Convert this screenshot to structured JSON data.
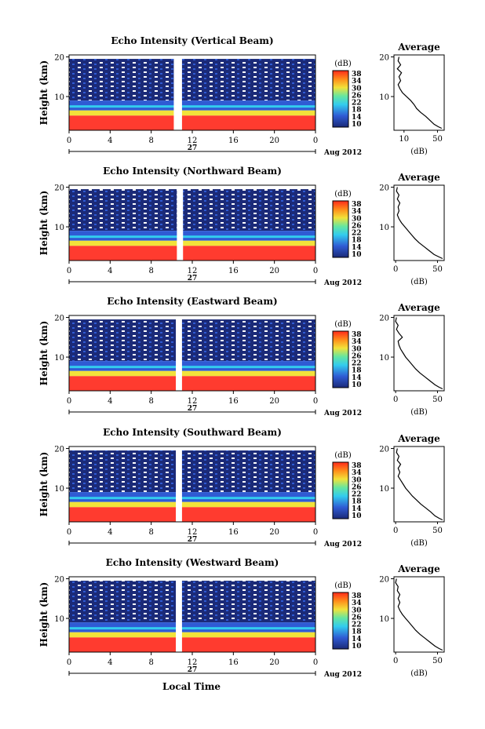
{
  "figure": {
    "xlabel": "Local Time",
    "date_label": "Aug 2012",
    "day_label": "27",
    "colorbar_unit": "(dB)",
    "avg_title": "Average",
    "avg_xlabel": "(dB)",
    "colors": {
      "red": "#ff3b2f",
      "navy": "#1b2a78",
      "blue": "#2f5bd4",
      "cyan": "#33ccee",
      "yellow": "#f2e23a"
    }
  },
  "chart_data": [
    {
      "type": "heatmap",
      "title": "Echo Intensity (Vertical Beam)",
      "ylabel": "Height (km)",
      "x_ticks": [
        "0",
        "4",
        "8",
        "12",
        "16",
        "20",
        "0"
      ],
      "y_ticks": [
        "10",
        "20"
      ],
      "xlim": [
        0,
        24
      ],
      "ylim": [
        1.5,
        20.5
      ],
      "data_gap_hours": [
        10.2,
        11.0
      ],
      "colorbar": {
        "ticks": [
          "38",
          "34",
          "30",
          "26",
          "22",
          "18",
          "14",
          "10"
        ],
        "range": [
          10,
          38
        ]
      },
      "average_profile": {
        "title": "Average",
        "xlabel": "(dB)",
        "x_ticks": [
          "10",
          "50"
        ],
        "y_ticks": [
          "10",
          "20"
        ],
        "xlim": [
          -2,
          58
        ],
        "points": [
          [
            4,
            20
          ],
          [
            3,
            19
          ],
          [
            6,
            18
          ],
          [
            2,
            17
          ],
          [
            7,
            16
          ],
          [
            4,
            15
          ],
          [
            6,
            14
          ],
          [
            3,
            13
          ],
          [
            5,
            12
          ],
          [
            8,
            11
          ],
          [
            13,
            10
          ],
          [
            18,
            9
          ],
          [
            22,
            8
          ],
          [
            25,
            7
          ],
          [
            30,
            6
          ],
          [
            36,
            5
          ],
          [
            41,
            4
          ],
          [
            46,
            3
          ],
          [
            51,
            2.4
          ],
          [
            55,
            2
          ]
        ]
      }
    },
    {
      "type": "heatmap",
      "title": "Echo Intensity (Northward Beam)",
      "ylabel": "Height (km)",
      "x_ticks": [
        "0",
        "4",
        "8",
        "12",
        "16",
        "20",
        "0"
      ],
      "y_ticks": [
        "10",
        "20"
      ],
      "xlim": [
        0,
        24
      ],
      "ylim": [
        1.5,
        20.5
      ],
      "data_gap_hours": [
        10.5,
        11.1
      ],
      "colorbar": {
        "ticks": [
          "38",
          "34",
          "30",
          "26",
          "22",
          "18",
          "14",
          "10"
        ],
        "range": [
          10,
          38
        ]
      },
      "average_profile": {
        "title": "Average",
        "xlabel": "(dB)",
        "x_ticks": [
          "0",
          "50"
        ],
        "y_ticks": [
          "10",
          "20"
        ],
        "xlim": [
          -2,
          58
        ],
        "points": [
          [
            2,
            20
          ],
          [
            1,
            19
          ],
          [
            4,
            18
          ],
          [
            2,
            17
          ],
          [
            5,
            16
          ],
          [
            3,
            15
          ],
          [
            4,
            14
          ],
          [
            2,
            13
          ],
          [
            4,
            12
          ],
          [
            7,
            11
          ],
          [
            11,
            10
          ],
          [
            15,
            9
          ],
          [
            19,
            8
          ],
          [
            23,
            7
          ],
          [
            28,
            6
          ],
          [
            34,
            5
          ],
          [
            40,
            4
          ],
          [
            46,
            3
          ],
          [
            52,
            2.4
          ],
          [
            56,
            2
          ]
        ]
      }
    },
    {
      "type": "heatmap",
      "title": "Echo Intensity (Eastward Beam)",
      "ylabel": "Height (km)",
      "x_ticks": [
        "0",
        "4",
        "8",
        "12",
        "16",
        "20",
        "0"
      ],
      "y_ticks": [
        "10",
        "20"
      ],
      "xlim": [
        0,
        24
      ],
      "ylim": [
        1.5,
        20.5
      ],
      "data_gap_hours": [
        10.4,
        11.0
      ],
      "colorbar": {
        "ticks": [
          "38",
          "34",
          "30",
          "26",
          "22",
          "18",
          "14",
          "10"
        ],
        "range": [
          10,
          38
        ]
      },
      "average_profile": {
        "title": "Average",
        "xlabel": "(dB)",
        "x_ticks": [
          "0",
          "50"
        ],
        "y_ticks": [
          "10",
          "20"
        ],
        "xlim": [
          -2,
          58
        ],
        "points": [
          [
            1,
            20
          ],
          [
            0,
            19
          ],
          [
            3,
            18
          ],
          [
            1,
            17
          ],
          [
            4,
            16
          ],
          [
            8,
            15
          ],
          [
            3,
            14
          ],
          [
            4,
            13
          ],
          [
            6,
            12
          ],
          [
            9,
            11
          ],
          [
            12,
            10
          ],
          [
            16,
            9
          ],
          [
            20,
            8
          ],
          [
            24,
            7
          ],
          [
            29,
            6
          ],
          [
            35,
            5
          ],
          [
            41,
            4
          ],
          [
            47,
            3
          ],
          [
            52,
            2.4
          ],
          [
            56,
            2
          ]
        ]
      }
    },
    {
      "type": "heatmap",
      "title": "Echo Intensity (Southward Beam)",
      "ylabel": "Height (km)",
      "x_ticks": [
        "0",
        "4",
        "8",
        "12",
        "16",
        "20",
        "0"
      ],
      "y_ticks": [
        "10",
        "20"
      ],
      "xlim": [
        0,
        24
      ],
      "ylim": [
        1.5,
        20.5
      ],
      "data_gap_hours": [
        10.4,
        11.0
      ],
      "colorbar": {
        "ticks": [
          "38",
          "34",
          "30",
          "26",
          "22",
          "18",
          "14",
          "10"
        ],
        "range": [
          10,
          38
        ]
      },
      "average_profile": {
        "title": "Average",
        "xlabel": "(dB)",
        "x_ticks": [
          "0",
          "50"
        ],
        "y_ticks": [
          "10",
          "20"
        ],
        "xlim": [
          -2,
          58
        ],
        "points": [
          [
            2,
            20
          ],
          [
            1,
            19
          ],
          [
            4,
            18
          ],
          [
            2,
            17
          ],
          [
            6,
            16
          ],
          [
            3,
            15
          ],
          [
            5,
            14
          ],
          [
            3,
            13
          ],
          [
            6,
            12
          ],
          [
            9,
            11
          ],
          [
            12,
            10
          ],
          [
            16,
            9
          ],
          [
            20,
            8
          ],
          [
            25,
            7
          ],
          [
            30,
            6
          ],
          [
            36,
            5
          ],
          [
            42,
            4
          ],
          [
            47,
            3
          ],
          [
            52,
            2.4
          ],
          [
            56,
            2
          ]
        ]
      }
    },
    {
      "type": "heatmap",
      "title": "Echo Intensity (Westward Beam)",
      "ylabel": "Height (km)",
      "x_ticks": [
        "0",
        "4",
        "8",
        "12",
        "16",
        "20",
        "0"
      ],
      "y_ticks": [
        "10",
        "20"
      ],
      "xlim": [
        0,
        24
      ],
      "ylim": [
        1.5,
        20.5
      ],
      "data_gap_hours": [
        10.4,
        11.0
      ],
      "colorbar": {
        "ticks": [
          "38",
          "34",
          "30",
          "26",
          "22",
          "18",
          "14",
          "10"
        ],
        "range": [
          10,
          38
        ]
      },
      "average_profile": {
        "title": "Average",
        "xlabel": "(dB)",
        "x_ticks": [
          "0",
          "50"
        ],
        "y_ticks": [
          "10",
          "20"
        ],
        "xlim": [
          -2,
          58
        ],
        "points": [
          [
            1,
            20
          ],
          [
            0,
            19
          ],
          [
            3,
            18
          ],
          [
            2,
            17
          ],
          [
            5,
            16
          ],
          [
            3,
            15
          ],
          [
            5,
            14
          ],
          [
            3,
            13
          ],
          [
            5,
            12
          ],
          [
            8,
            11
          ],
          [
            12,
            10
          ],
          [
            16,
            9
          ],
          [
            20,
            8
          ],
          [
            24,
            7
          ],
          [
            29,
            6
          ],
          [
            35,
            5
          ],
          [
            41,
            4
          ],
          [
            47,
            3
          ],
          [
            52,
            2.4
          ],
          [
            56,
            2
          ]
        ]
      }
    }
  ]
}
